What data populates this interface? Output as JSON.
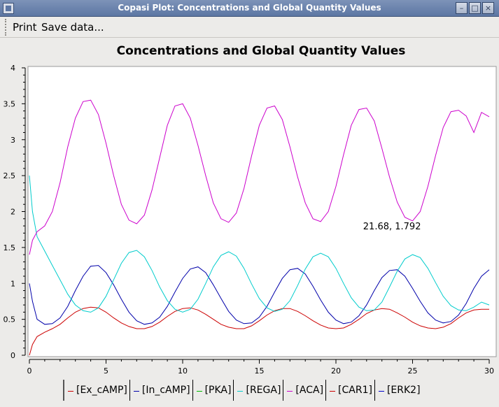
{
  "window": {
    "title": "Copasi Plot: Concentrations and Global Quantity Values"
  },
  "menu": {
    "items": [
      "Print",
      "Save data..."
    ]
  },
  "chart_data": {
    "type": "line",
    "title": "Concentrations and Global Quantity Values",
    "xlabel": "",
    "ylabel": "",
    "xlim": [
      0,
      30
    ],
    "ylim": [
      0,
      4
    ],
    "xticks": [
      0,
      5,
      10,
      15,
      20,
      25,
      30
    ],
    "yticks": [
      0,
      0.5,
      1,
      1.5,
      2,
      2.5,
      3,
      3.5,
      4
    ],
    "grid": false,
    "legend_position": "bottom",
    "annotation": {
      "text": "21.68, 1.792",
      "x": 21.68,
      "y": 1.792
    },
    "series": [
      {
        "name": "[Ex_cAMP]",
        "color": "#cc0000",
        "x": [
          0,
          0.2,
          0.5,
          1,
          1.5,
          2,
          2.5,
          3,
          3.5,
          4,
          4.5,
          5,
          5.5,
          6,
          6.5,
          7,
          7.5,
          8,
          8.5,
          9,
          9.5,
          10,
          10.5,
          11,
          11.5,
          12,
          12.5,
          13,
          13.5,
          14,
          14.5,
          15,
          15.5,
          16,
          16.5,
          17,
          17.5,
          18,
          18.5,
          19,
          19.5,
          20,
          20.5,
          21,
          21.5,
          22,
          22.5,
          23,
          23.5,
          24,
          24.5,
          25,
          25.5,
          26,
          26.5,
          27,
          27.5,
          28,
          28.5,
          29,
          29.5,
          30
        ],
        "values": [
          0.0,
          0.15,
          0.26,
          0.32,
          0.37,
          0.43,
          0.52,
          0.6,
          0.65,
          0.67,
          0.66,
          0.6,
          0.52,
          0.45,
          0.4,
          0.37,
          0.37,
          0.4,
          0.46,
          0.54,
          0.61,
          0.65,
          0.66,
          0.63,
          0.57,
          0.5,
          0.43,
          0.39,
          0.37,
          0.37,
          0.41,
          0.48,
          0.56,
          0.62,
          0.65,
          0.65,
          0.61,
          0.55,
          0.48,
          0.42,
          0.38,
          0.37,
          0.38,
          0.43,
          0.5,
          0.58,
          0.63,
          0.65,
          0.64,
          0.59,
          0.53,
          0.46,
          0.41,
          0.38,
          0.37,
          0.39,
          0.44,
          0.52,
          0.59,
          0.63,
          0.64,
          0.64
        ]
      },
      {
        "name": "[In_cAMP]",
        "color": "#0000aa",
        "x": [
          0,
          0.2,
          0.5,
          1,
          1.5,
          2,
          2.5,
          3,
          3.5,
          4,
          4.5,
          5,
          5.5,
          6,
          6.5,
          7,
          7.5,
          8,
          8.5,
          9,
          9.5,
          10,
          10.5,
          11,
          11.5,
          12,
          12.5,
          13,
          13.5,
          14,
          14.5,
          15,
          15.5,
          16,
          16.5,
          17,
          17.5,
          18,
          18.5,
          19,
          19.5,
          20,
          20.5,
          21,
          21.5,
          22,
          22.5,
          23,
          23.5,
          24,
          24.5,
          25,
          25.5,
          26,
          26.5,
          27,
          27.5,
          28,
          28.5,
          29,
          29.5,
          30
        ],
        "values": [
          1.0,
          0.75,
          0.5,
          0.43,
          0.44,
          0.52,
          0.68,
          0.9,
          1.1,
          1.24,
          1.25,
          1.15,
          0.98,
          0.78,
          0.6,
          0.48,
          0.43,
          0.45,
          0.53,
          0.68,
          0.88,
          1.07,
          1.2,
          1.23,
          1.15,
          0.98,
          0.79,
          0.61,
          0.49,
          0.44,
          0.45,
          0.53,
          0.68,
          0.88,
          1.07,
          1.19,
          1.21,
          1.13,
          0.96,
          0.77,
          0.6,
          0.49,
          0.44,
          0.46,
          0.55,
          0.7,
          0.9,
          1.08,
          1.18,
          1.19,
          1.1,
          0.93,
          0.75,
          0.59,
          0.49,
          0.45,
          0.47,
          0.56,
          0.72,
          0.93,
          1.1,
          1.19
        ]
      },
      {
        "name": "[PKA]",
        "color": "#00bb00",
        "x": [],
        "values": []
      },
      {
        "name": "[REGA]",
        "color": "#00cccc",
        "x": [
          0,
          0.2,
          0.5,
          1,
          1.5,
          2,
          2.5,
          3,
          3.5,
          4,
          4.5,
          5,
          5.5,
          6,
          6.5,
          7,
          7.5,
          8,
          8.5,
          9,
          9.5,
          10,
          10.5,
          11,
          11.5,
          12,
          12.5,
          13,
          13.5,
          14,
          14.5,
          15,
          15.5,
          16,
          16.5,
          17,
          17.5,
          18,
          18.5,
          19,
          19.5,
          20,
          20.5,
          21,
          21.5,
          22,
          22.5,
          23,
          23.5,
          24,
          24.5,
          25,
          25.5,
          26,
          26.5,
          27,
          27.5,
          28,
          28.5,
          29,
          29.5,
          30
        ],
        "values": [
          2.5,
          2.0,
          1.65,
          1.45,
          1.25,
          1.05,
          0.85,
          0.7,
          0.62,
          0.6,
          0.66,
          0.82,
          1.05,
          1.28,
          1.43,
          1.46,
          1.37,
          1.18,
          0.95,
          0.76,
          0.64,
          0.6,
          0.64,
          0.78,
          1.0,
          1.23,
          1.39,
          1.44,
          1.38,
          1.21,
          0.99,
          0.79,
          0.66,
          0.61,
          0.64,
          0.76,
          0.97,
          1.2,
          1.37,
          1.42,
          1.37,
          1.21,
          1.0,
          0.8,
          0.67,
          0.62,
          0.63,
          0.74,
          0.95,
          1.17,
          1.34,
          1.4,
          1.36,
          1.21,
          1.01,
          0.82,
          0.69,
          0.63,
          0.62,
          0.67,
          0.74,
          0.7
        ]
      },
      {
        "name": "[ACA]",
        "color": "#cc00cc",
        "x": [
          0,
          0.2,
          0.5,
          1,
          1.5,
          2,
          2.5,
          3,
          3.5,
          4,
          4.5,
          5,
          5.5,
          6,
          6.5,
          7,
          7.5,
          8,
          8.5,
          9,
          9.5,
          10,
          10.5,
          11,
          11.5,
          12,
          12.5,
          13,
          13.5,
          14,
          14.5,
          15,
          15.5,
          16,
          16.5,
          17,
          17.5,
          18,
          18.5,
          19,
          19.5,
          20,
          20.5,
          21,
          21.5,
          22,
          22.5,
          23,
          23.5,
          24,
          24.5,
          25,
          25.5,
          26,
          26.5,
          27,
          27.5,
          28,
          28.5,
          29,
          29.5,
          30
        ],
        "values": [
          1.4,
          1.6,
          1.72,
          1.8,
          2.0,
          2.4,
          2.9,
          3.3,
          3.53,
          3.55,
          3.35,
          2.95,
          2.5,
          2.1,
          1.88,
          1.83,
          1.95,
          2.3,
          2.75,
          3.2,
          3.47,
          3.5,
          3.3,
          2.92,
          2.5,
          2.12,
          1.9,
          1.85,
          1.98,
          2.32,
          2.78,
          3.2,
          3.44,
          3.47,
          3.28,
          2.9,
          2.48,
          2.12,
          1.9,
          1.86,
          2.0,
          2.35,
          2.79,
          3.2,
          3.42,
          3.44,
          3.26,
          2.88,
          2.48,
          2.13,
          1.92,
          1.87,
          2.0,
          2.35,
          2.78,
          3.17,
          3.39,
          3.41,
          3.33,
          3.1,
          3.38,
          3.32
        ]
      },
      {
        "name": "[CAR1]",
        "color": "#cc0000",
        "x": [],
        "values": []
      },
      {
        "name": "[ERK2]",
        "color": "#0000cc",
        "x": [],
        "values": []
      }
    ]
  },
  "colors": {
    "titlebar": "#6a83ad",
    "plot_bg": "#ffffff",
    "window_bg": "#ecebe9"
  },
  "icons": [
    "app-icon",
    "minimize-icon",
    "maximize-icon",
    "close-icon",
    "toolbar-grip-icon"
  ]
}
